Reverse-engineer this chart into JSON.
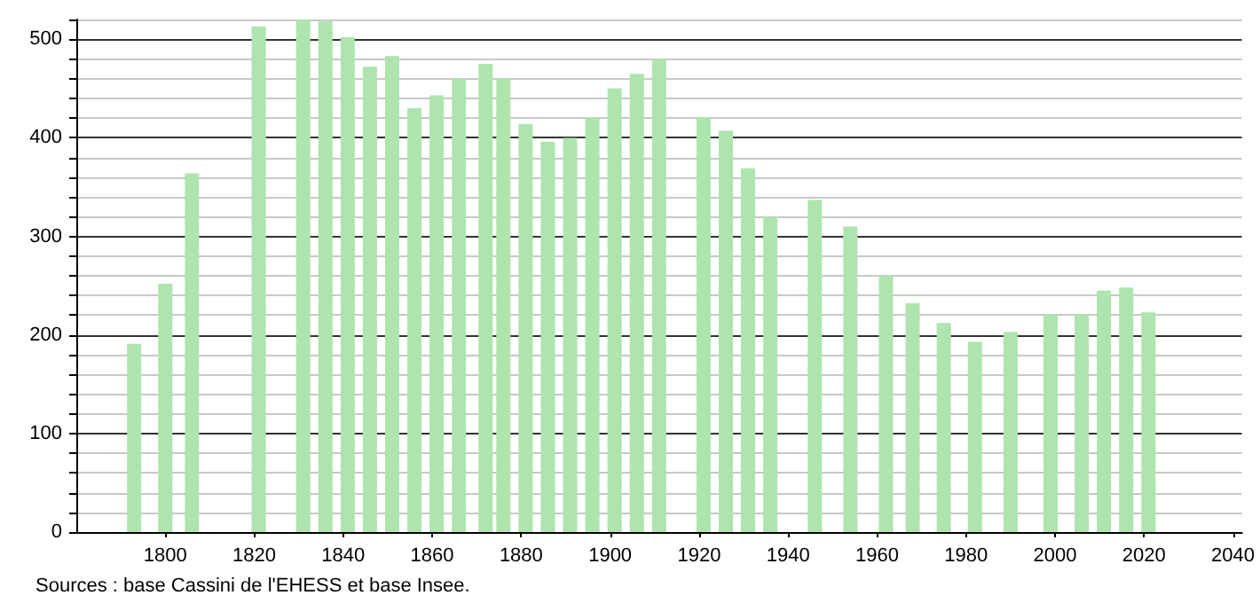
{
  "chart_data": {
    "type": "bar",
    "x": [
      1793,
      1800,
      1806,
      1821,
      1831,
      1836,
      1841,
      1846,
      1851,
      1856,
      1861,
      1866,
      1872,
      1876,
      1881,
      1886,
      1891,
      1896,
      1901,
      1906,
      1911,
      1921,
      1926,
      1931,
      1936,
      1946,
      1954,
      1962,
      1968,
      1975,
      1982,
      1990,
      1999,
      2006,
      2011,
      2016,
      2021
    ],
    "values": [
      191,
      252,
      364,
      513,
      520,
      518,
      502,
      472,
      483,
      430,
      443,
      460,
      475,
      460,
      414,
      396,
      400,
      421,
      450,
      465,
      480,
      421,
      407,
      369,
      320,
      337,
      310,
      260,
      232,
      212,
      193,
      203,
      221,
      221,
      245,
      248,
      223
    ],
    "color": "#aee4ae",
    "xlim": [
      1780,
      2042
    ],
    "xticks": [
      1800,
      1820,
      1840,
      1860,
      1880,
      1900,
      1920,
      1940,
      1960,
      1980,
      2000,
      2020,
      2040
    ],
    "ylim": [
      0,
      520
    ],
    "yticks": [
      0,
      {
        "value": 20,
        "label": null
      },
      {
        "value": 40,
        "label": null
      },
      {
        "value": 60,
        "label": null
      },
      {
        "value": 80,
        "label": null
      },
      100,
      {
        "value": 120,
        "label": null
      },
      {
        "value": 140,
        "label": null
      },
      {
        "value": 160,
        "label": null
      },
      {
        "value": 180,
        "label": null
      },
      200,
      {
        "value": 220,
        "label": null
      },
      {
        "value": 240,
        "label": null
      },
      {
        "value": 260,
        "label": null
      },
      {
        "value": 280,
        "label": null
      },
      300,
      {
        "value": 320,
        "label": null
      },
      {
        "value": 340,
        "label": null
      },
      {
        "value": 360,
        "label": null
      },
      {
        "value": 380,
        "label": null
      },
      400,
      {
        "value": 420,
        "label": null
      },
      {
        "value": 440,
        "label": null
      },
      {
        "value": 460,
        "label": null
      },
      {
        "value": 480,
        "label": null
      },
      500,
      {
        "value": 520,
        "label": null
      }
    ],
    "grid": "y",
    "annotations": [
      "Sources : base Cassini de l'EHESS et base Insee."
    ]
  }
}
